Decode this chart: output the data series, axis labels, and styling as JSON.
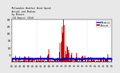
{
  "bg_color": "#e8e8e8",
  "plot_bg": "#ffffff",
  "n_points": 1440,
  "seed": 42,
  "bar_color": "#cc0000",
  "median_color": "#0000cc",
  "ylim": [
    0,
    30
  ],
  "ytick_values": [
    5,
    10,
    15,
    20,
    25,
    30
  ],
  "ylabel_fontsize": 3.0,
  "xlabel_fontsize": 2.5,
  "legend_fontsize": 2.8,
  "vline_color": "#bbbbbb",
  "vline_positions": [
    360,
    720,
    1080
  ],
  "title_text": "Milwaukee Weather Wind Speed\nActual and Median\nby Minute\n(24 Hours) (Old)",
  "legend_labels": [
    "Median",
    "Actual"
  ]
}
